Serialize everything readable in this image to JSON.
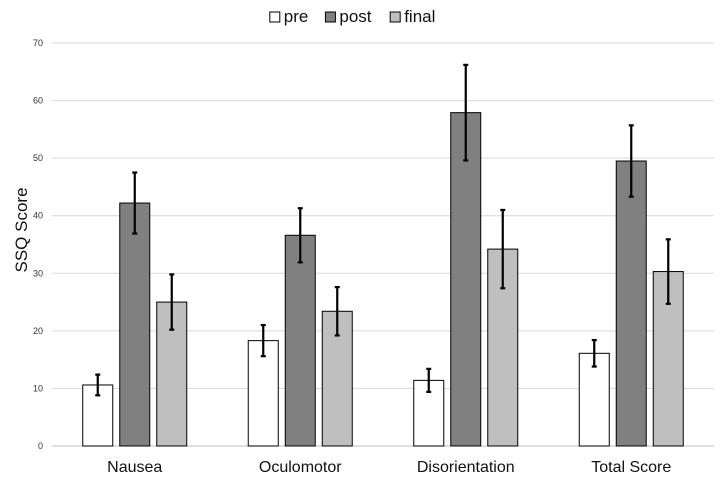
{
  "chart_data": {
    "type": "bar",
    "title": "",
    "xlabel": "",
    "ylabel": "SSQ Score",
    "ylim": [
      0,
      70
    ],
    "yticks": [
      0,
      10,
      20,
      30,
      40,
      50,
      60,
      70
    ],
    "grid": true,
    "legend_position": "top-center",
    "categories": [
      "Nausea",
      "Oculomotor",
      "Disorientation",
      "Total Score"
    ],
    "series": [
      {
        "name": "pre",
        "color": "#ffffff",
        "values": [
          10.6,
          18.3,
          11.4,
          16.1
        ],
        "errors": [
          1.8,
          2.7,
          2.0,
          2.3
        ]
      },
      {
        "name": "post",
        "color": "#808080",
        "values": [
          42.2,
          36.6,
          57.9,
          49.5
        ],
        "errors": [
          5.3,
          4.7,
          8.3,
          6.2
        ]
      },
      {
        "name": "final",
        "color": "#bfbfbf",
        "values": [
          25.0,
          23.4,
          34.2,
          30.3
        ],
        "errors": [
          4.8,
          4.2,
          6.8,
          5.6
        ]
      }
    ]
  }
}
